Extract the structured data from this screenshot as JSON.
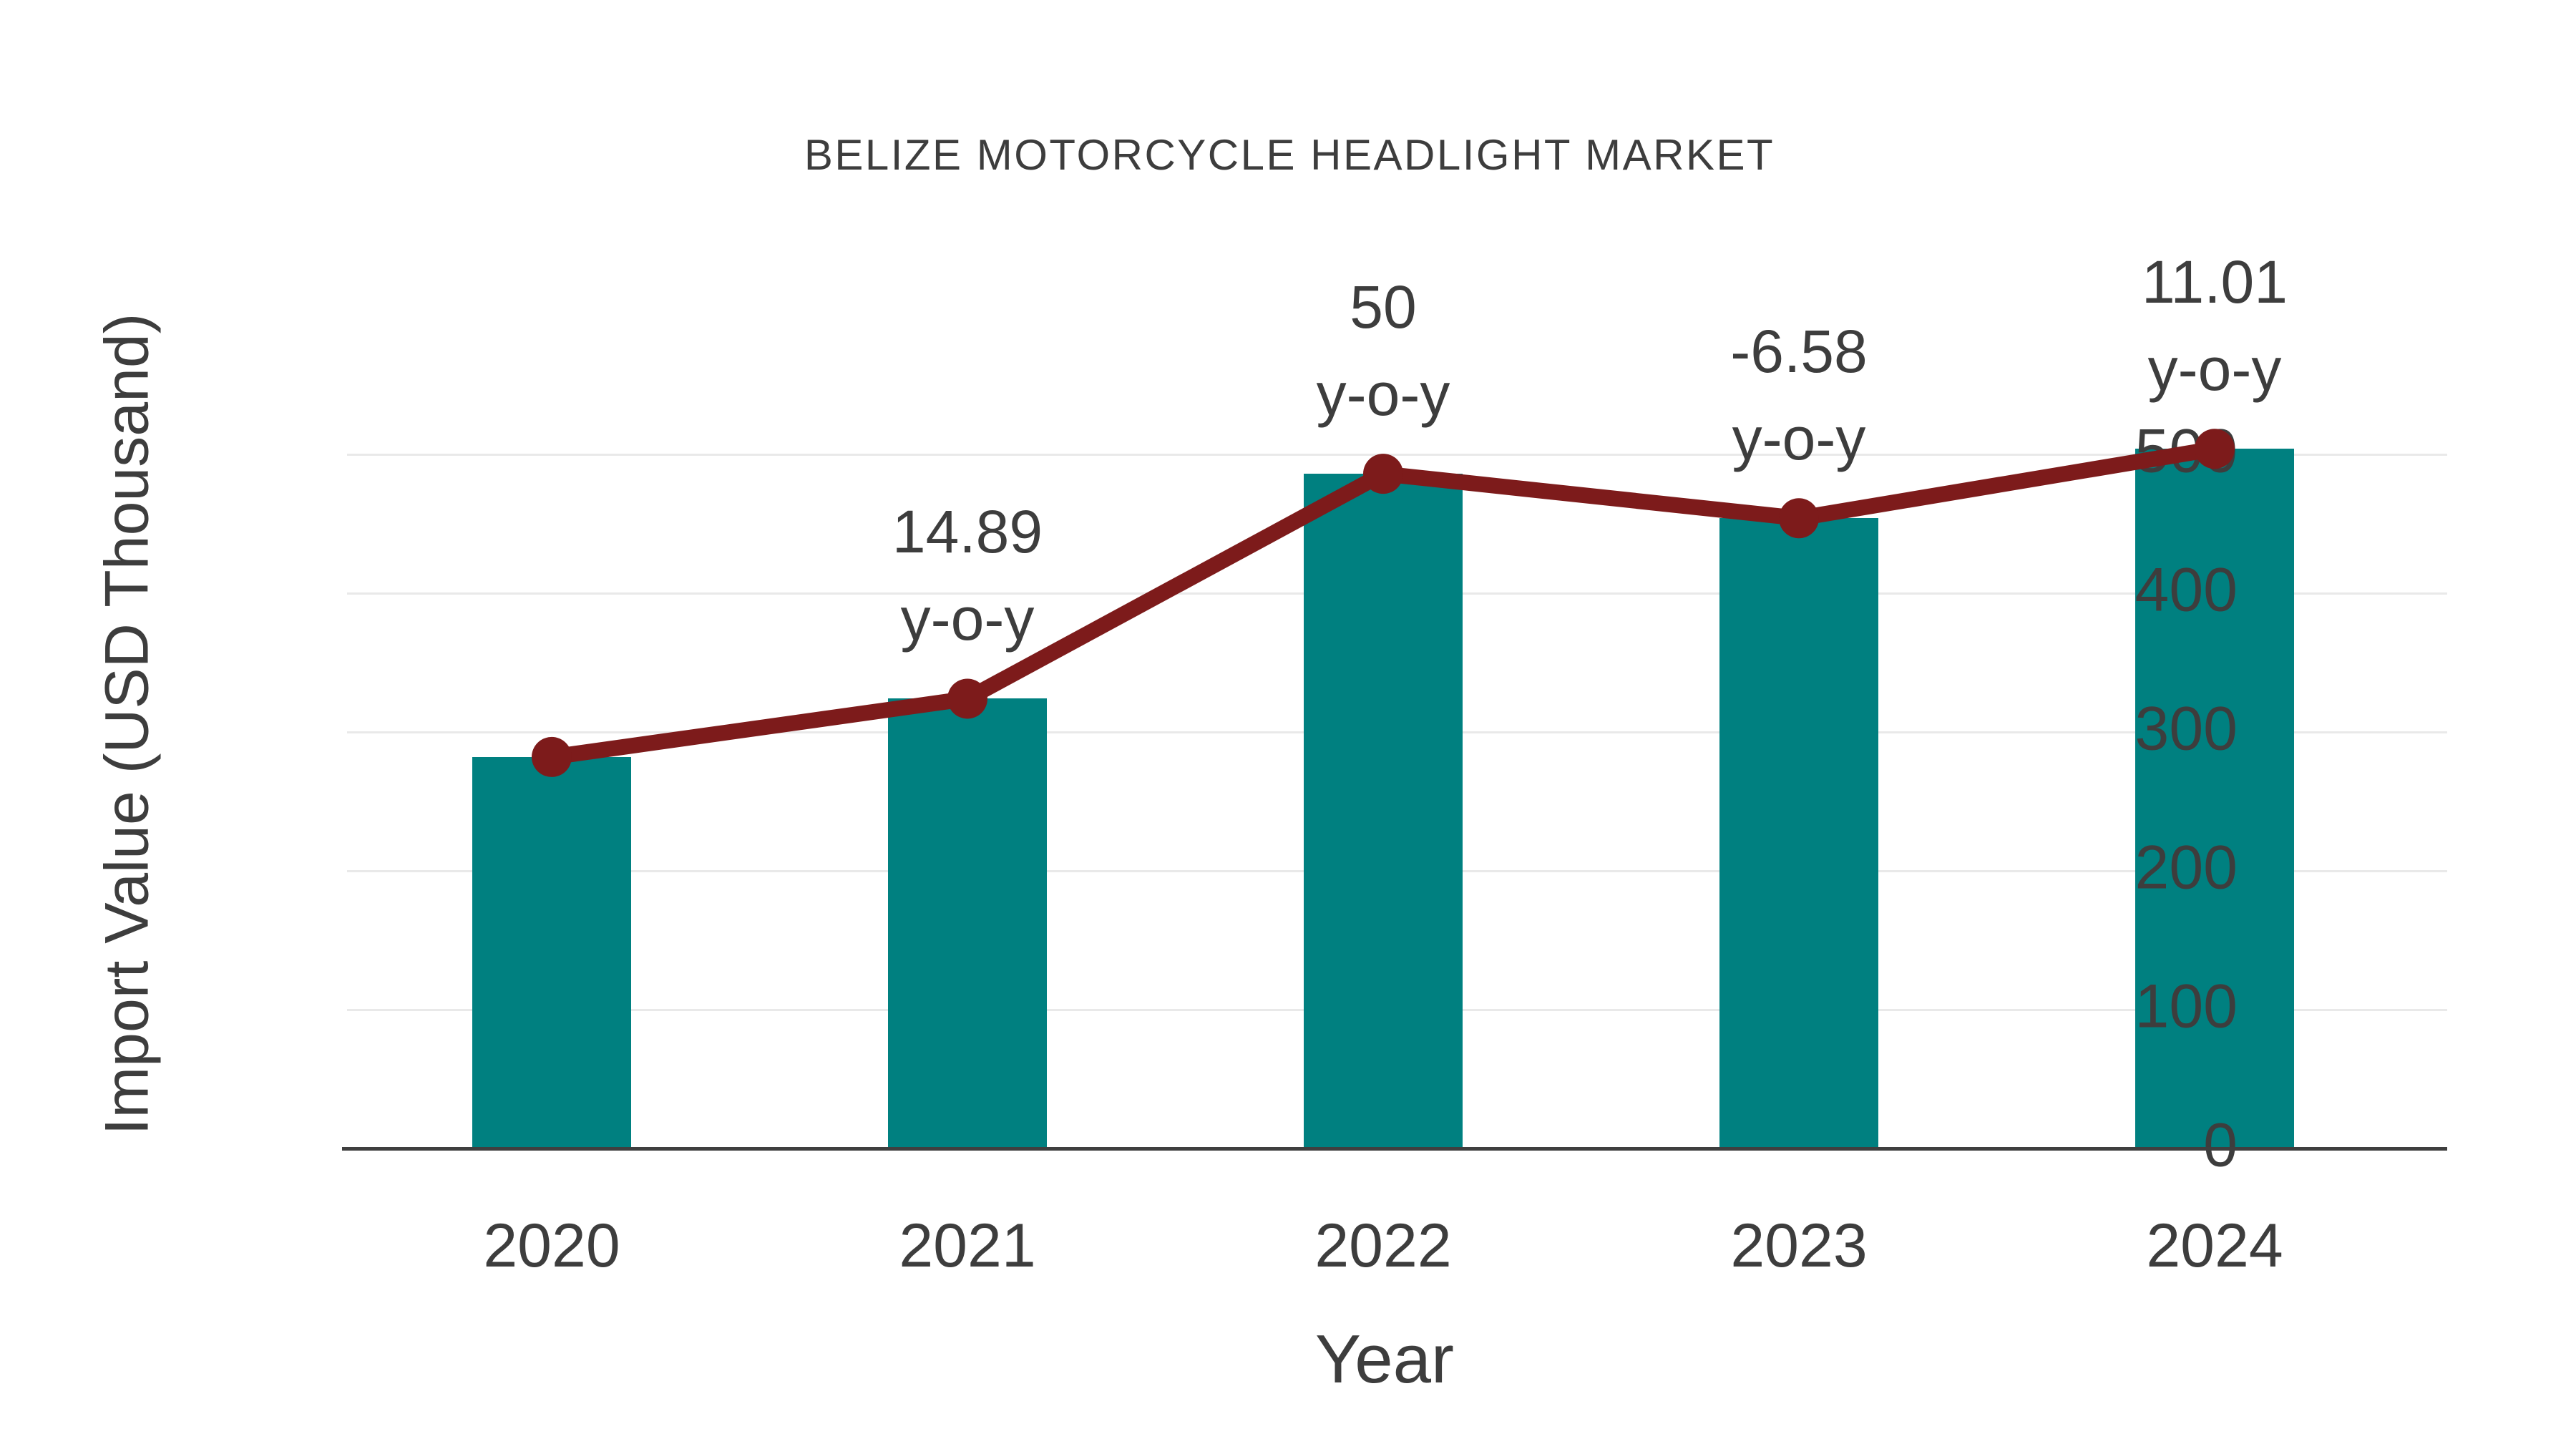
{
  "chart_data": {
    "type": "bar",
    "title": "BELIZE MOTORCYCLE HEADLIGHT MARKET",
    "xlabel": "Year",
    "ylabel": "Import Value (USD Thousand)",
    "categories": [
      "2020",
      "2021",
      "2022",
      "2023",
      "2024"
    ],
    "series": [
      {
        "name": "import-value-bars",
        "type": "bar",
        "values": [
          282,
          324,
          486,
          454,
          504
        ]
      },
      {
        "name": "import-value-trend-line",
        "type": "line",
        "values": [
          282,
          324,
          486,
          454,
          504
        ]
      }
    ],
    "annotations": [
      {
        "category": "2021",
        "line1": "14.89",
        "line2": "y-o-y"
      },
      {
        "category": "2022",
        "line1": "50",
        "line2": "y-o-y"
      },
      {
        "category": "2023",
        "line1": "-6.58",
        "line2": "y-o-y"
      },
      {
        "category": "2024",
        "line1": "11.01",
        "line2": "y-o-y"
      }
    ],
    "yticks": [
      0,
      100,
      200,
      300,
      400,
      500
    ],
    "ylim": [
      0,
      560
    ],
    "grid": true,
    "legend_position": "none",
    "colors": {
      "bar": "#008080",
      "line": "#7d1b1b",
      "marker": "#7d1b1b",
      "grid": "#e9e9e9",
      "axis": "#3f3f3f",
      "text": "#3d3d3d",
      "background": "#ffffff"
    }
  }
}
